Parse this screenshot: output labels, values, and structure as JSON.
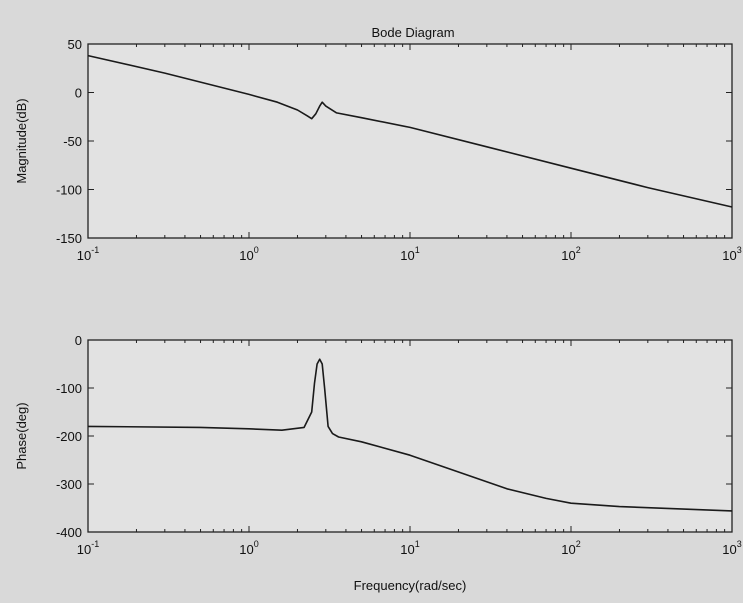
{
  "chart_data": {
    "title": "Bode Diagram",
    "xlabel": "Frequency(rad/sec)",
    "x_scale": "log",
    "x_ticks": [
      {
        "value": 0.1,
        "base": "10",
        "exp": "-1"
      },
      {
        "value": 1,
        "base": "10",
        "exp": "0"
      },
      {
        "value": 10,
        "base": "10",
        "exp": "1"
      },
      {
        "value": 100,
        "base": "10",
        "exp": "2"
      },
      {
        "value": 1000,
        "base": "10",
        "exp": "3"
      }
    ],
    "grid": false,
    "subplots": [
      {
        "type": "line",
        "ylabel": "Magnitude(dB)",
        "ylim": [
          -150,
          50
        ],
        "y_ticks": [
          50,
          0,
          -50,
          -100,
          -150
        ],
        "xlim": [
          0.1,
          1000
        ],
        "x": [
          0.1,
          0.3,
          1.0,
          1.5,
          2.0,
          2.3,
          2.45,
          2.6,
          2.75,
          2.85,
          3.0,
          3.5,
          5.0,
          10,
          30,
          100,
          300,
          1000
        ],
        "y": [
          38,
          20,
          -2,
          -10,
          -18,
          -24,
          -27,
          -22,
          -14,
          -10,
          -14,
          -21,
          -26,
          -36,
          -56,
          -78,
          -98,
          -118
        ]
      },
      {
        "type": "line",
        "ylabel": "Phase(deg)",
        "ylim": [
          -400,
          0
        ],
        "y_ticks": [
          0,
          -100,
          -200,
          -300,
          -400
        ],
        "xlim": [
          0.1,
          1000
        ],
        "x": [
          0.1,
          0.5,
          1.0,
          1.6,
          2.2,
          2.45,
          2.55,
          2.65,
          2.75,
          2.85,
          2.95,
          3.1,
          3.3,
          3.6,
          5.0,
          10,
          20,
          40,
          70,
          100,
          200,
          1000
        ],
        "y": [
          -180,
          -182,
          -185,
          -188,
          -182,
          -150,
          -90,
          -50,
          -40,
          -50,
          -100,
          -180,
          -195,
          -202,
          -212,
          -240,
          -275,
          -310,
          -330,
          -340,
          -347,
          -356
        ]
      }
    ]
  }
}
